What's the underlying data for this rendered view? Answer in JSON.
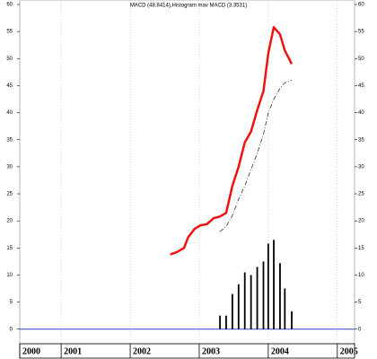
{
  "chart_data": {
    "type": "line",
    "title": "MACD (48.8414),Histogram mav MACD (3.3531)",
    "x": [
      2002.58,
      2002.67,
      2002.78,
      2002.84,
      2002.93,
      2003.02,
      2003.11,
      2003.21,
      2003.3,
      2003.39,
      2003.48,
      2003.57,
      2003.66,
      2003.75,
      2003.84,
      2003.93,
      2004.0,
      2004.08,
      2004.17,
      2004.24,
      2004.34
    ],
    "series": [
      {
        "style": "solid",
        "color": "#ee1111",
        "values": [
          13.8,
          14.2,
          15,
          17,
          18.5,
          19.2,
          19.4,
          20.5,
          20.8,
          21.5,
          26.5,
          30,
          34.5,
          36.5,
          40.5,
          44,
          51,
          55.8,
          54.5,
          51.5,
          49
        ]
      },
      {
        "style": "dashed",
        "color": "#333333",
        "values": [
          null,
          null,
          null,
          null,
          null,
          null,
          null,
          null,
          18,
          19,
          21,
          24,
          26.5,
          29.5,
          32.5,
          36,
          40,
          42.5,
          44.5,
          45.5,
          46
        ]
      },
      {
        "style": "bars",
        "color": "#000000",
        "values": [
          null,
          null,
          null,
          null,
          null,
          null,
          null,
          null,
          2.5,
          2.5,
          6.5,
          8.3,
          10.5,
          10,
          11.5,
          12.5,
          15.8,
          16.5,
          12.2,
          7.5,
          3.3
        ]
      }
    ],
    "zero_line_color": "#3344cc",
    "xlim": [
      2000.4,
      2005.25
    ],
    "xticks": [
      {
        "value": 2000.4,
        "label": "2000"
      },
      2001,
      2002,
      2003,
      2004,
      2005
    ],
    "ylim": [
      -2.7,
      60
    ],
    "yticks": [
      0,
      5,
      10,
      15,
      20,
      25,
      30,
      35,
      40,
      45,
      50,
      55,
      60
    ],
    "grid": true
  }
}
